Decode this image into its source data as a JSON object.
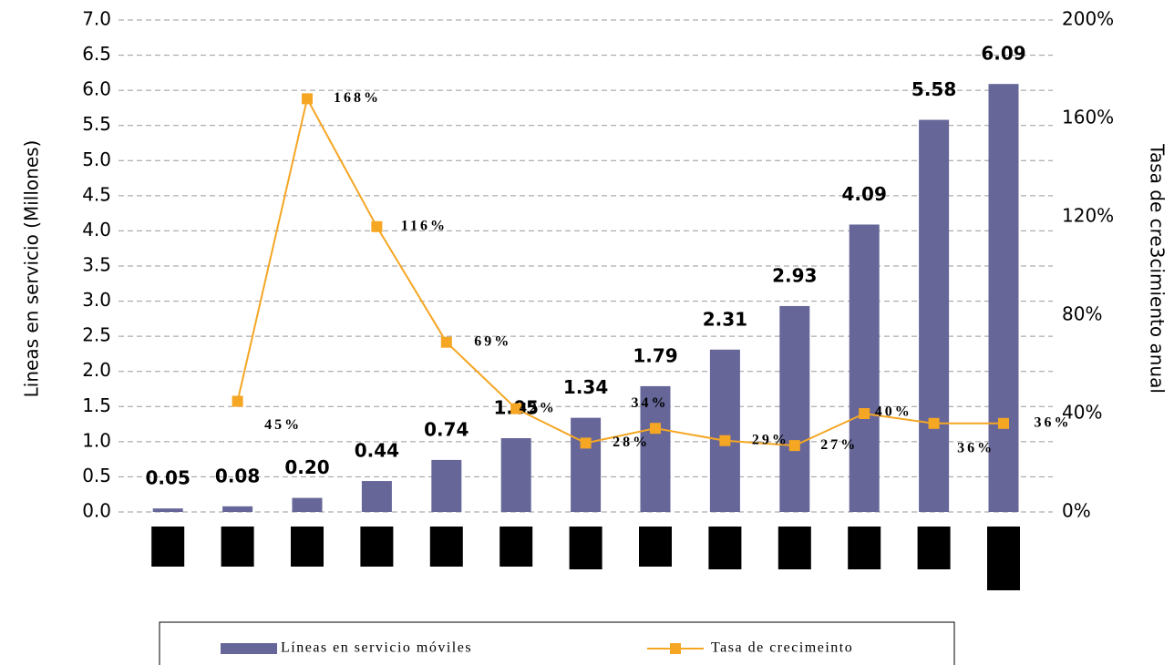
{
  "chart_data": {
    "type": "bar-line",
    "categories": [
      null,
      null,
      null,
      null,
      null,
      null,
      null,
      null,
      null,
      null,
      null,
      null,
      null
    ],
    "series": [
      {
        "name": "Líneas en servicio móviles",
        "type": "bar",
        "color": "#666699",
        "values": [
          0.05,
          0.08,
          0.2,
          0.44,
          0.74,
          1.05,
          1.34,
          1.79,
          2.31,
          2.93,
          4.09,
          5.58,
          6.09
        ],
        "value_labels": [
          "0.05",
          "0.08",
          "0.20",
          "0.44",
          "0.74",
          "1.05",
          "1.34",
          "1.79",
          "2.31",
          "2.93",
          "4.09",
          "5.58",
          "6.09"
        ]
      },
      {
        "name": "Tasa de crecimeinto",
        "type": "line",
        "axis": "y2",
        "color": "#f5a623",
        "values": [
          null,
          45,
          168,
          116,
          69,
          42,
          28,
          34,
          29,
          27,
          40,
          36,
          36
        ],
        "value_labels": [
          null,
          "45%",
          "168%",
          "116%",
          "69%",
          "42%",
          "28%",
          "34%",
          "29%",
          "27%",
          "40%",
          "36%",
          "36%"
        ]
      }
    ],
    "ylabel": "Lineas en servicio (Millones)",
    "y2label": "Tasa de cre3cimiento anual",
    "ylim": [
      0,
      7
    ],
    "yticks": [
      {
        "value": 0,
        "label": "0.0"
      },
      0.5,
      {
        "value": 1,
        "label": "1.0"
      },
      1.5,
      {
        "value": 2,
        "label": "2.0"
      },
      2.5,
      {
        "value": 3,
        "label": "3.0"
      },
      3.5,
      {
        "value": 4,
        "label": "4.0"
      },
      4.5,
      {
        "value": 5,
        "label": "5.0"
      },
      5.5,
      {
        "value": 6,
        "label": "6.0"
      },
      6.5,
      {
        "value": 7,
        "label": "7.0"
      }
    ],
    "y2lim": [
      0,
      200
    ],
    "y2ticks": [
      {
        "value": 0,
        "label": "0%"
      },
      {
        "value": 40,
        "label": "40%"
      },
      {
        "value": 80,
        "label": "80%"
      },
      {
        "value": 120,
        "label": "120%"
      },
      {
        "value": 160,
        "label": "160%"
      },
      {
        "value": 200,
        "label": "200%"
      }
    ],
    "grid": true,
    "legend": "bottom"
  }
}
